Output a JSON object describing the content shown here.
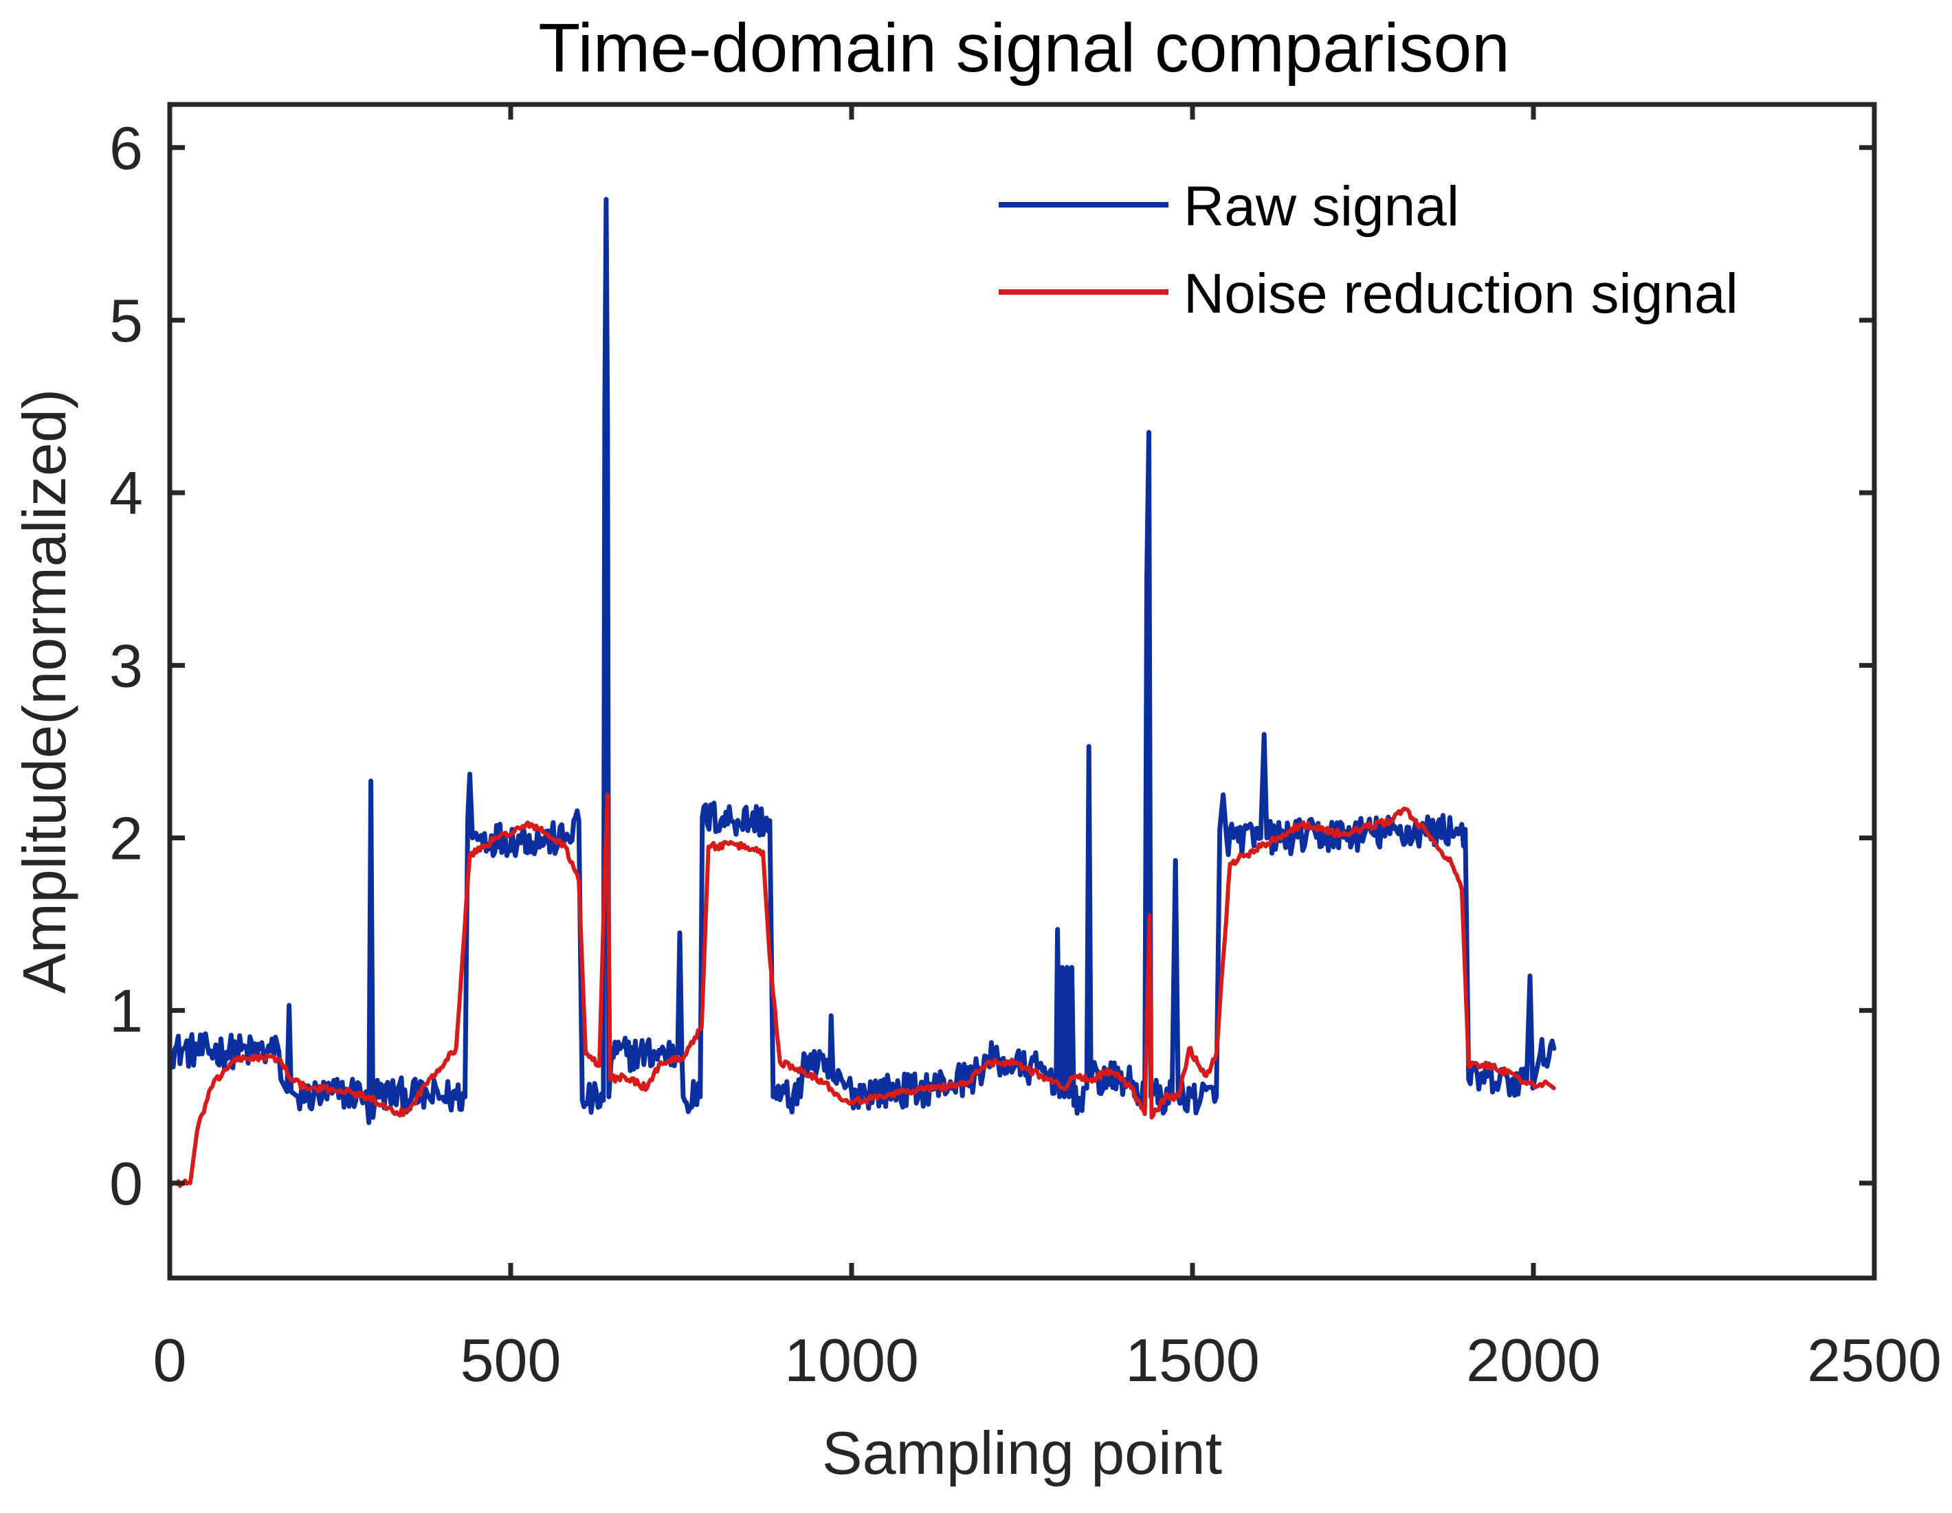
{
  "chart_data": {
    "type": "line",
    "title": "Time-domain signal comparison",
    "xlabel": "Sampling point",
    "ylabel": "Amplitude(normalized)",
    "xlim": [
      0,
      2500
    ],
    "ylim": [
      -0.55,
      6.25
    ],
    "xticks": [
      0,
      500,
      1000,
      1500,
      2000,
      2500
    ],
    "xtick_labels": [
      "0",
      "500",
      "1000",
      "1500",
      "2000",
      "2500"
    ],
    "yticks": [
      0,
      1,
      2,
      3,
      4,
      5,
      6
    ],
    "ytick_labels": [
      "0",
      "1",
      "2",
      "3",
      "4",
      "5",
      "6"
    ],
    "grid": false,
    "legend_position": "top-right",
    "series": [
      {
        "name": "Raw signal",
        "color": "#0b2f9f",
        "noise_amplitude": 0.1,
        "points": [
          [
            0,
            0.77
          ],
          [
            160,
            0.76
          ],
          [
            163,
            0.6
          ],
          [
            172,
            0.53
          ],
          [
            175,
            1.03
          ],
          [
            178,
            0.53
          ],
          [
            188,
            0.5
          ],
          [
            288,
            0.53
          ],
          [
            292,
            0.35
          ],
          [
            295,
            2.33
          ],
          [
            298,
            0.38
          ],
          [
            302,
            0.52
          ],
          [
            380,
            0.5
          ],
          [
            433,
            0.5
          ],
          [
            437,
            2.1
          ],
          [
            440,
            2.37
          ],
          [
            444,
            2.0
          ],
          [
            580,
            1.99
          ],
          [
            600,
            2.1
          ],
          [
            605,
            0.48
          ],
          [
            636,
            0.48
          ],
          [
            638,
            4.5
          ],
          [
            640,
            5.7
          ],
          [
            642,
            4.4
          ],
          [
            644,
            0.5
          ],
          [
            648,
            0.75
          ],
          [
            745,
            0.75
          ],
          [
            748,
            1.45
          ],
          [
            751,
            0.75
          ],
          [
            753,
            0.5
          ],
          [
            778,
            0.5
          ],
          [
            781,
            2.12
          ],
          [
            880,
            2.1
          ],
          [
            885,
            0.5
          ],
          [
            925,
            0.5
          ],
          [
            930,
            0.75
          ],
          [
            968,
            0.62
          ],
          [
            970,
            0.97
          ],
          [
            973,
            0.6
          ],
          [
            1000,
            0.53
          ],
          [
            1100,
            0.54
          ],
          [
            1180,
            0.62
          ],
          [
            1200,
            0.72
          ],
          [
            1240,
            0.68
          ],
          [
            1280,
            0.65
          ],
          [
            1300,
            0.6
          ],
          [
            1302,
            1.47
          ],
          [
            1305,
            0.5
          ],
          [
            1309,
            1.25
          ],
          [
            1312,
            0.5
          ],
          [
            1316,
            1.25
          ],
          [
            1319,
            0.5
          ],
          [
            1323,
            1.25
          ],
          [
            1326,
            0.45
          ],
          [
            1345,
            0.55
          ],
          [
            1348,
            2.53
          ],
          [
            1351,
            0.6
          ],
          [
            1400,
            0.6
          ],
          [
            1430,
            0.5
          ],
          [
            1433,
            3.5
          ],
          [
            1436,
            4.35
          ],
          [
            1439,
            0.5
          ],
          [
            1470,
            0.5
          ],
          [
            1475,
            1.87
          ],
          [
            1479,
            0.5
          ],
          [
            1500,
            0.5
          ],
          [
            1535,
            0.5
          ],
          [
            1540,
            2.05
          ],
          [
            1545,
            2.25
          ],
          [
            1550,
            2.0
          ],
          [
            1600,
            2.0
          ],
          [
            1605,
            2.6
          ],
          [
            1609,
            2.0
          ],
          [
            1900,
            2.05
          ],
          [
            1905,
            0.6
          ],
          [
            1990,
            0.58
          ],
          [
            1995,
            1.2
          ],
          [
            1999,
            0.55
          ],
          [
            2010,
            0.75
          ],
          [
            2030,
            0.78
          ]
        ]
      },
      {
        "name": "Noise reduction signal",
        "color": "#d71a1a",
        "noise_amplitude": 0.02,
        "points": [
          [
            0,
            0.0
          ],
          [
            30,
            0.0
          ],
          [
            40,
            0.3
          ],
          [
            60,
            0.55
          ],
          [
            90,
            0.7
          ],
          [
            120,
            0.73
          ],
          [
            160,
            0.72
          ],
          [
            180,
            0.6
          ],
          [
            200,
            0.55
          ],
          [
            250,
            0.54
          ],
          [
            290,
            0.5
          ],
          [
            310,
            0.45
          ],
          [
            330,
            0.4
          ],
          [
            350,
            0.42
          ],
          [
            380,
            0.6
          ],
          [
            420,
            0.78
          ],
          [
            440,
            1.9
          ],
          [
            480,
            2.0
          ],
          [
            530,
            2.08
          ],
          [
            580,
            1.95
          ],
          [
            600,
            1.75
          ],
          [
            610,
            0.75
          ],
          [
            630,
            0.68
          ],
          [
            638,
            1.8
          ],
          [
            642,
            2.25
          ],
          [
            646,
            0.6
          ],
          [
            665,
            0.62
          ],
          [
            700,
            0.55
          ],
          [
            720,
            0.7
          ],
          [
            750,
            0.72
          ],
          [
            780,
            0.9
          ],
          [
            790,
            1.95
          ],
          [
            830,
            1.96
          ],
          [
            870,
            1.92
          ],
          [
            880,
            1.3
          ],
          [
            895,
            0.7
          ],
          [
            930,
            0.65
          ],
          [
            960,
            0.58
          ],
          [
            990,
            0.48
          ],
          [
            1020,
            0.48
          ],
          [
            1060,
            0.52
          ],
          [
            1120,
            0.55
          ],
          [
            1170,
            0.58
          ],
          [
            1200,
            0.7
          ],
          [
            1240,
            0.7
          ],
          [
            1290,
            0.6
          ],
          [
            1310,
            0.55
          ],
          [
            1330,
            0.62
          ],
          [
            1350,
            0.6
          ],
          [
            1380,
            0.65
          ],
          [
            1410,
            0.55
          ],
          [
            1430,
            0.4
          ],
          [
            1437,
            1.55
          ],
          [
            1440,
            0.38
          ],
          [
            1460,
            0.5
          ],
          [
            1480,
            0.5
          ],
          [
            1495,
            0.78
          ],
          [
            1520,
            0.62
          ],
          [
            1535,
            0.75
          ],
          [
            1555,
            1.85
          ],
          [
            1600,
            1.95
          ],
          [
            1660,
            2.08
          ],
          [
            1720,
            2.02
          ],
          [
            1790,
            2.1
          ],
          [
            1810,
            2.17
          ],
          [
            1850,
            2.0
          ],
          [
            1880,
            1.85
          ],
          [
            1895,
            1.7
          ],
          [
            1905,
            0.68
          ],
          [
            1940,
            0.68
          ],
          [
            1980,
            0.6
          ],
          [
            2000,
            0.57
          ],
          [
            2020,
            0.58
          ],
          [
            2030,
            0.55
          ]
        ]
      }
    ]
  }
}
